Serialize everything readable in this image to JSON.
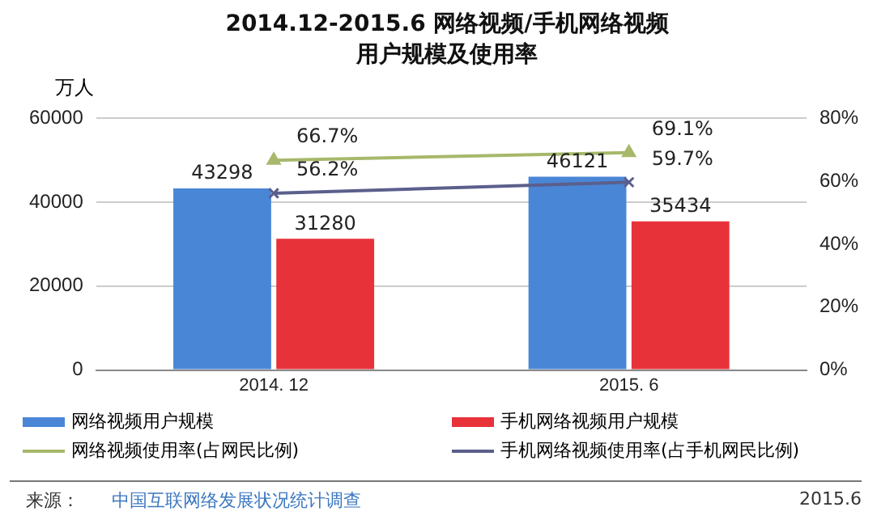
{
  "chart_data": {
    "type": "bar",
    "title": "2014.12-2015.6 网络视频/手机网络视频",
    "subtitle": "用户规模及使用率",
    "ylabel": "万人",
    "categories": [
      "2014. 12",
      "2015. 6"
    ],
    "series": [
      {
        "name": "网络视频用户规模",
        "color": "#4a86d6",
        "values": [
          43298,
          46121
        ],
        "value_labels": [
          "43298",
          "46121"
        ]
      },
      {
        "name": "手机网络视频用户规模",
        "color": "#e8323a",
        "values": [
          31280,
          35434
        ],
        "value_labels": [
          "31280",
          "35434"
        ]
      },
      {
        "name": "网络视频使用率(占网民比例)",
        "type": "line",
        "axis": "y2",
        "marker": "triangle",
        "color": "#a7b86b",
        "values": [
          66.7,
          69.1
        ],
        "value_labels": [
          "66.7%",
          "69.1%"
        ]
      },
      {
        "name": "手机网络视频使用率(占手机网民比例)",
        "type": "line",
        "axis": "y2",
        "marker": "cross",
        "color": "#5b5f8c",
        "values": [
          56.2,
          59.7
        ],
        "value_labels": [
          "56.2%",
          "59.7%"
        ]
      }
    ],
    "ylim": [
      0,
      60000
    ],
    "yticks": [
      0,
      20000,
      40000,
      60000
    ],
    "y2lim": [
      0,
      80
    ],
    "y2ticks": [
      {
        "value": 0,
        "label": "0%"
      },
      {
        "value": 20,
        "label": "20%"
      },
      {
        "value": 40,
        "label": "40%"
      },
      {
        "value": 60,
        "label": "60%"
      },
      {
        "value": 80,
        "label": "80%"
      }
    ],
    "grid": "y",
    "legend": "bottom",
    "annotations": [
      "来源：",
      "中国互联网络发展状况统计调查",
      "2015.6"
    ]
  }
}
